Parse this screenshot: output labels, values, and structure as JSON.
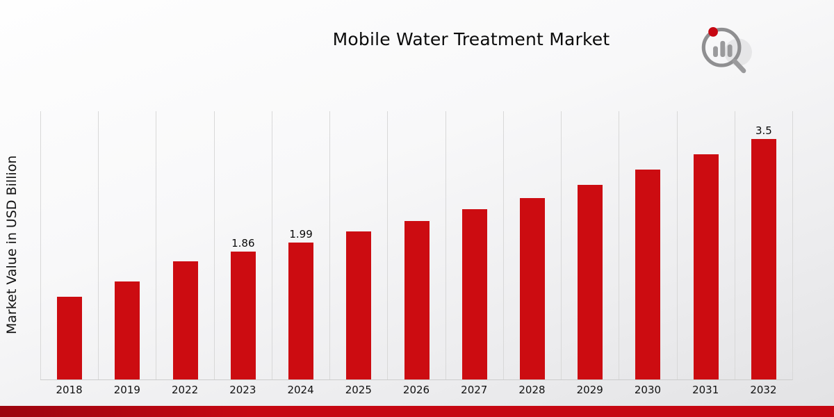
{
  "header": {
    "title": "Mobile Water Treatment Market"
  },
  "chart_data": {
    "type": "bar",
    "title": "Mobile Water Treatment Market",
    "xlabel": "",
    "ylabel": "Market Value in USD Billion",
    "categories": [
      "2018",
      "2019",
      "2022",
      "2023",
      "2024",
      "2025",
      "2026",
      "2027",
      "2028",
      "2029",
      "2030",
      "2031",
      "2032"
    ],
    "values": [
      1.2,
      1.42,
      1.72,
      1.86,
      1.99,
      2.15,
      2.3,
      2.48,
      2.64,
      2.83,
      3.05,
      3.27,
      3.5
    ],
    "data_labels": [
      "",
      "",
      "",
      "1.86",
      "1.99",
      "",
      "",
      "",
      "",
      "",
      "",
      "",
      "3.5"
    ],
    "bar_color": "#cc0c11",
    "ylim": [
      0,
      3.9
    ],
    "grid": "vertical",
    "legend": "none"
  },
  "footer": {
    "accent_color": "#c60712"
  },
  "logo": {
    "name": "brand-analytics-logo"
  }
}
